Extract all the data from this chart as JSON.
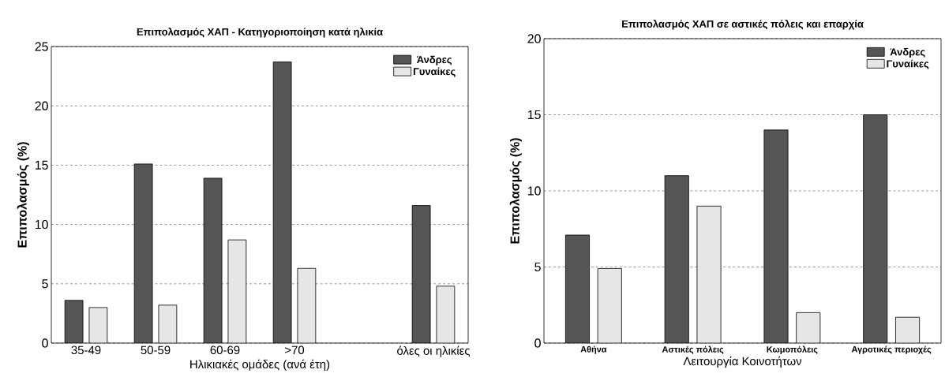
{
  "chart_data": [
    {
      "type": "bar",
      "title": "Επιπολασμός ΧΑΠ - Κατηγοριοποίηση κατά ηλικία",
      "xlabel": "Ηλικιακές ομάδες (ανά έτη)",
      "ylabel": "Επιπολασμός   (%)",
      "categories": [
        "35-49",
        "50-59",
        "60-69",
        ">70",
        null,
        "όλες οι ηλικίες"
      ],
      "series": [
        {
          "name": "Άνδρες",
          "color": "#555555",
          "values": [
            3.6,
            15.1,
            13.9,
            23.7,
            null,
            11.6
          ]
        },
        {
          "name": "Γυναίκες",
          "color": "#e6e6e6",
          "values": [
            3.0,
            3.2,
            8.7,
            6.3,
            null,
            4.8
          ]
        }
      ],
      "ylim": [
        0,
        25
      ],
      "yticks": [
        0,
        5,
        10,
        15,
        20,
        25
      ],
      "grid": "y",
      "legend": "top right"
    },
    {
      "type": "bar",
      "title": "Επιπολασμός ΧΑΠ σε αστικές πόλεις και επαρχία",
      "xlabel": "Λειτουργία Κοινοτήτων",
      "ylabel": "Επιπολασμός   (%)",
      "categories": [
        "Αθήνα",
        "Αστικές πόλεις",
        "Κωμοπόλεις",
        "Αγροτικές περιοχές"
      ],
      "series": [
        {
          "name": "Άνδρες",
          "color": "#555555",
          "values": [
            7.1,
            11.0,
            14.0,
            15.0
          ]
        },
        {
          "name": "Γυναίκες",
          "color": "#e6e6e6",
          "values": [
            4.9,
            9.0,
            2.0,
            1.7
          ]
        }
      ],
      "ylim": [
        0,
        20
      ],
      "yticks": [
        0,
        5,
        10,
        15,
        20
      ],
      "grid": "y",
      "legend": "top right"
    }
  ]
}
